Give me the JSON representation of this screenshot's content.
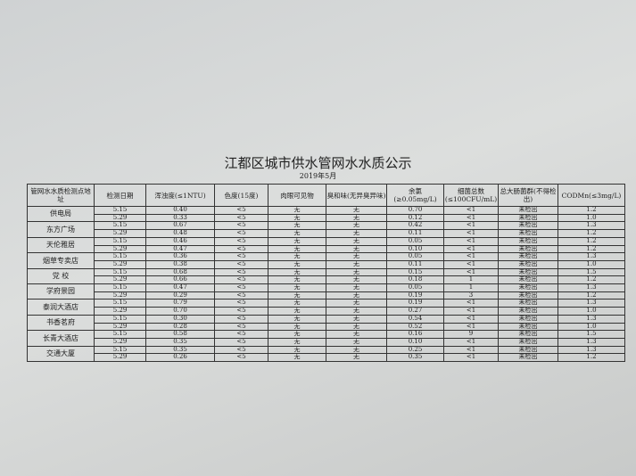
{
  "title": "江都区城市供水管网水水质公示",
  "subtitle": "2019年5月",
  "table": {
    "header": [
      "管网水水质检测点地址",
      "检测日期",
      "浑浊度(≤1NTU)",
      "色度(15度)",
      "肉眼可见物",
      "臭和味(无异臭异味)",
      "余氯(≥0.05mg/L)",
      "细菌总数(≤100CFU/mL)",
      "总大肠菌群(不得检出)",
      "CODMn(≤3mg/L)"
    ],
    "rows": [
      {
        "site": "供电局",
        "readings": [
          [
            "5.15",
            "0.40",
            "<5",
            "无",
            "无",
            "0.70",
            "<1",
            "未检出",
            "1.2"
          ],
          [
            "5.29",
            "0.33",
            "<5",
            "无",
            "无",
            "0.12",
            "<1",
            "未检出",
            "1.0"
          ]
        ]
      },
      {
        "site": "东方广场",
        "readings": [
          [
            "5.15",
            "0.67",
            "<5",
            "无",
            "无",
            "0.42",
            "<1",
            "未检出",
            "1.3"
          ],
          [
            "5.29",
            "0.48",
            "<5",
            "无",
            "无",
            "0.11",
            "<1",
            "未检出",
            "1.2"
          ]
        ]
      },
      {
        "site": "天伦雅居",
        "readings": [
          [
            "5.15",
            "0.46",
            "<5",
            "无",
            "无",
            "0.05",
            "<1",
            "未检出",
            "1.2"
          ],
          [
            "5.29",
            "0.47",
            "<5",
            "无",
            "无",
            "0.10",
            "<1",
            "未检出",
            "1.2"
          ]
        ]
      },
      {
        "site": "烟草专卖店",
        "readings": [
          [
            "5.15",
            "0.36",
            "<5",
            "无",
            "无",
            "0.05",
            "<1",
            "未检出",
            "1.3"
          ],
          [
            "5.29",
            "0.38",
            "<5",
            "无",
            "无",
            "0.11",
            "<1",
            "未检出",
            "1.0"
          ]
        ]
      },
      {
        "site": "党 校",
        "readings": [
          [
            "5.15",
            "0.68",
            "<5",
            "无",
            "无",
            "0.15",
            "<1",
            "未检出",
            "1.5"
          ],
          [
            "5.29",
            "0.66",
            "<5",
            "无",
            "无",
            "0.18",
            "1",
            "未检出",
            "1.2"
          ]
        ]
      },
      {
        "site": "学府景园",
        "readings": [
          [
            "5.15",
            "0.47",
            "<5",
            "无",
            "无",
            "0.05",
            "1",
            "未检出",
            "1.3"
          ],
          [
            "5.29",
            "0.29",
            "<5",
            "无",
            "无",
            "0.19",
            "3",
            "未检出",
            "1.2"
          ]
        ]
      },
      {
        "site": "泰润大酒店",
        "readings": [
          [
            "5.15",
            "0.79",
            "<5",
            "无",
            "无",
            "0.19",
            "<1",
            "未检出",
            "1.3"
          ],
          [
            "5.29",
            "0.70",
            "<5",
            "无",
            "无",
            "0.27",
            "<1",
            "未检出",
            "1.0"
          ]
        ]
      },
      {
        "site": "书香茗府",
        "readings": [
          [
            "5.15",
            "0.30",
            "<5",
            "无",
            "无",
            "0.54",
            "<1",
            "未检出",
            "1.3"
          ],
          [
            "5.29",
            "0.28",
            "<5",
            "无",
            "无",
            "0.52",
            "<1",
            "未检出",
            "1.0"
          ]
        ]
      },
      {
        "site": "长青大酒店",
        "readings": [
          [
            "5.15",
            "0.58",
            "<5",
            "无",
            "无",
            "0.16",
            "9",
            "未检出",
            "1.5"
          ],
          [
            "5.29",
            "0.35",
            "<5",
            "无",
            "无",
            "0.10",
            "<1",
            "未检出",
            "1.3"
          ]
        ]
      },
      {
        "site": "交通大厦",
        "readings": [
          [
            "5.15",
            "0.35",
            "<5",
            "无",
            "无",
            "0.25",
            "<1",
            "未检出",
            "1.3"
          ],
          [
            "5.29",
            "0.26",
            "<5",
            "无",
            "无",
            "0.35",
            "<1",
            "未检出",
            "1.2"
          ]
        ]
      }
    ]
  }
}
